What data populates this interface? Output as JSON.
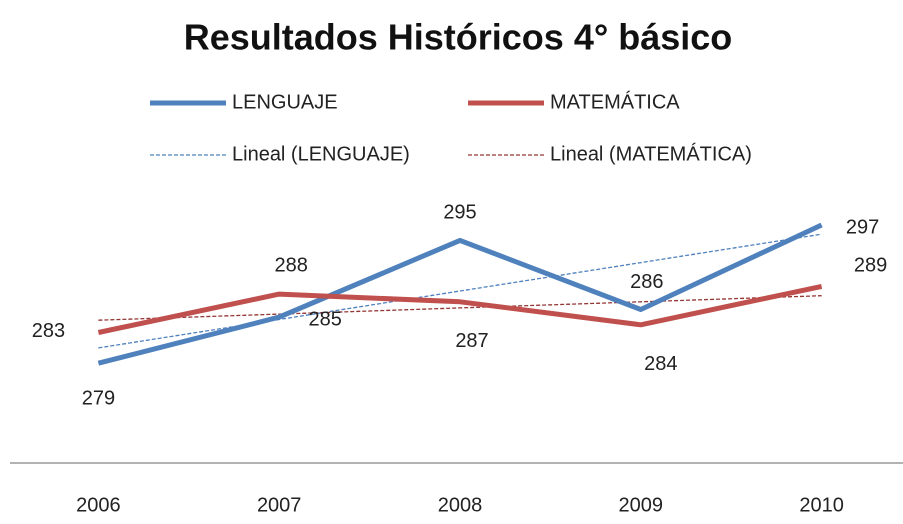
{
  "chart_data": {
    "type": "line",
    "title": "Resultados Históricos  4° básico",
    "categories": [
      "2006",
      "2007",
      "2008",
      "2009",
      "2010"
    ],
    "ylim": [
      266,
      300
    ],
    "series": [
      {
        "name": "LENGUAJE",
        "color": "#4f81bd",
        "values": [
          279,
          285,
          295,
          286,
          297
        ]
      },
      {
        "name": "MATEMÁTICA",
        "color": "#c0504d",
        "values": [
          283,
          288,
          287,
          284,
          289
        ]
      },
      {
        "name": "Lineal (LENGUAJE)",
        "color": "#4f81bd",
        "dashed": true,
        "values": [
          281,
          284.7,
          288.4,
          292.1,
          295.8
        ]
      },
      {
        "name": "Lineal (MATEMÁTICA)",
        "color": "#943634",
        "dashed": true,
        "values": [
          284.6,
          285.4,
          286.2,
          287,
          287.8
        ]
      }
    ]
  }
}
